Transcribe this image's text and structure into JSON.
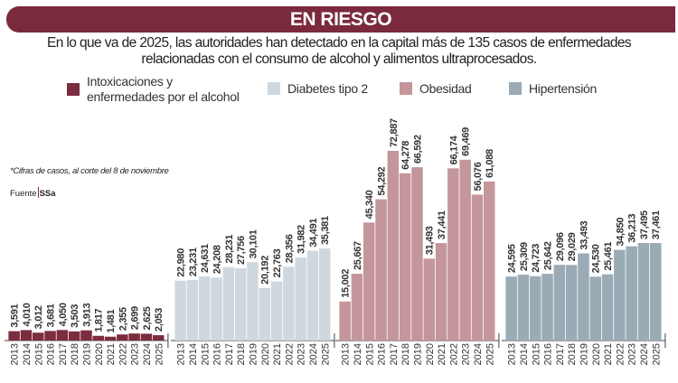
{
  "header": {
    "title": "EN RIESGO",
    "subtitle": "En lo que va de 2025, las autoridades han detectado en la capital más de 135 casos de enfermedades relacionadas con el consumo de alcohol y alimentos ultraprocesados."
  },
  "legend": [
    {
      "label": "Intoxicaciones y enfermedades por el alcohol",
      "color": "#7b2c3e"
    },
    {
      "label": "Diabetes tipo 2",
      "color": "#cfd8df"
    },
    {
      "label": "Obesidad",
      "color": "#c4969b"
    },
    {
      "label": "Hipertensión",
      "color": "#9aabb6"
    }
  ],
  "note": "*Cifras de casos, al corte del 8 de noviembre",
  "source": {
    "label": "Fuente",
    "value": "SSa"
  },
  "chart_data": {
    "type": "bar",
    "categories": [
      "2013",
      "2014",
      "2015",
      "2016",
      "2017",
      "2018",
      "2019",
      "2020",
      "2021",
      "2022",
      "2023",
      "2024",
      "2025"
    ],
    "series": [
      {
        "name": "Intoxicaciones y enfermedades por el alcohol",
        "color": "#7b2c3e",
        "values": [
          3591,
          4010,
          3012,
          3681,
          4050,
          3503,
          3913,
          1817,
          1481,
          2355,
          2699,
          2625,
          2053
        ],
        "labels": [
          "3,591",
          "4,010",
          "3,012",
          "3,681",
          "4,050",
          "3,503",
          "3,913",
          "1,817",
          "1,481",
          "2,355",
          "2,699",
          "2,625",
          "2,053"
        ]
      },
      {
        "name": "Diabetes tipo 2",
        "color": "#cfd8df",
        "values": [
          22980,
          23231,
          24631,
          24208,
          28231,
          27756,
          30101,
          20192,
          22763,
          28356,
          31982,
          34491,
          35381
        ],
        "labels": [
          "22,980",
          "23,231",
          "24,631",
          "24,208",
          "28,231",
          "27,756",
          "30,101",
          "20,192",
          "22,763",
          "28,356",
          "31,982",
          "34,491",
          "35,381"
        ]
      },
      {
        "name": "Obesidad",
        "color": "#c4969b",
        "values": [
          15002,
          25667,
          45340,
          54292,
          72887,
          64278,
          66592,
          31493,
          37441,
          66174,
          69469,
          56076,
          61088
        ],
        "labels": [
          "15,002",
          "25,667",
          "45,340",
          "54,292",
          "72,887",
          "64,278",
          "66,592",
          "31,493",
          "37,441",
          "66,174",
          "69,469",
          "56,076",
          "61,088"
        ]
      },
      {
        "name": "Hipertensión",
        "color": "#9aabb6",
        "values": [
          24595,
          25309,
          24723,
          25642,
          29096,
          29029,
          33493,
          24530,
          25461,
          34850,
          36213,
          37495,
          37461
        ],
        "labels": [
          "24,595",
          "25,309",
          "24,723",
          "25,642",
          "29,096",
          "29,029",
          "33,493",
          "24,530",
          "25,461",
          "34,850",
          "36,213",
          "37,495",
          "37,461"
        ]
      }
    ],
    "ylim": [
      0,
      75000
    ],
    "grid": false,
    "legend_position": "top"
  }
}
